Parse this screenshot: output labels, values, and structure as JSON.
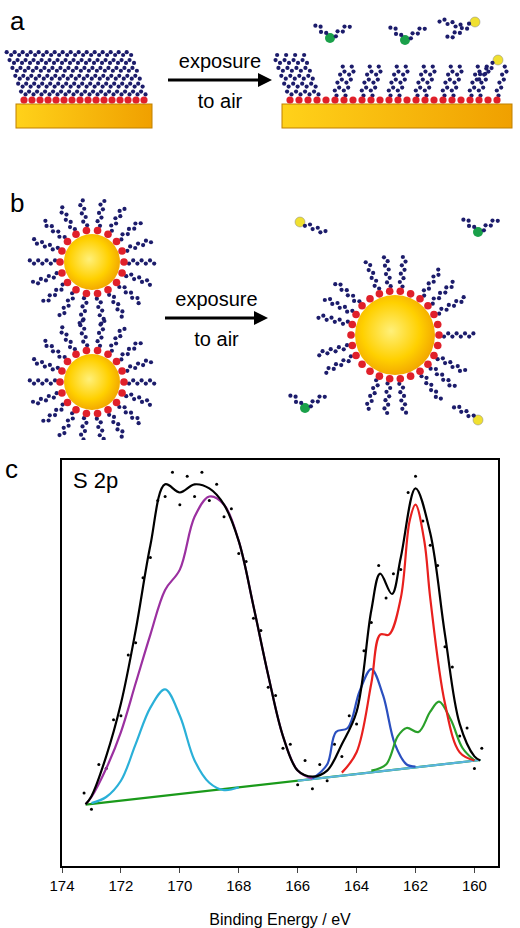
{
  "panels": [
    {
      "label": "a",
      "arrow_text": [
        "exposure",
        "to air"
      ]
    },
    {
      "label": "b",
      "arrow_text": [
        "exposure",
        "to air"
      ]
    }
  ],
  "chart_data": {
    "type": "line",
    "panel_label": "c",
    "title": "S 2p",
    "xlabel": "Binding Energy / eV",
    "xlim": [
      174,
      159.2
    ],
    "xticks": [
      174,
      172,
      170,
      168,
      166,
      164,
      162,
      160
    ],
    "ylim": [
      0,
      100
    ],
    "tick_labels": "x",
    "grid": false,
    "series": [
      {
        "type": "scatter",
        "marker": "circle",
        "color": "#000000",
        "x": [
          173.25,
          173.0,
          172.75,
          172.5,
          172.25,
          172.0,
          171.75,
          171.5,
          171.25,
          171.0,
          170.75,
          170.5,
          170.25,
          170.0,
          169.75,
          169.5,
          169.25,
          169.0,
          168.75,
          168.5,
          168.25,
          168.0,
          167.75,
          167.5,
          167.25,
          167.0,
          166.75,
          166.5,
          166.25,
          166.0,
          165.75,
          165.5,
          165.25,
          165.0,
          164.75,
          164.5,
          164.25,
          164.0,
          163.75,
          163.5,
          163.25,
          163.0,
          162.75,
          162.5,
          162.25,
          162.0,
          161.75,
          161.5,
          161.25,
          161.0,
          160.75,
          160.5,
          160.25,
          160.0,
          159.75
        ],
        "values": [
          18,
          14,
          25,
          24,
          36,
          37,
          52,
          55,
          71,
          76,
          90,
          91,
          97,
          89,
          96,
          91,
          97,
          90,
          94,
          86,
          88,
          77,
          75,
          61,
          58,
          44,
          42,
          29,
          30,
          20,
          26,
          19,
          25,
          21,
          30,
          27,
          37,
          35,
          53,
          60,
          74,
          66,
          72,
          73,
          92,
          96,
          85,
          79,
          74,
          54,
          49,
          32,
          34,
          24,
          29
        ]
      },
      {
        "type": "line",
        "line_style": "solid",
        "color": "#1a9a1a",
        "x": [
          173.2,
          159.8
        ],
        "values": [
          15.1,
          26.1
        ]
      },
      {
        "type": "line",
        "line_style": "solid",
        "color": "#5ab4e0",
        "x": [
          166,
          159.8
        ],
        "values": [
          21.0,
          26.1
        ]
      },
      {
        "type": "line",
        "line_style": "solid",
        "color": "#2ab0d8",
        "x": [
          173,
          172.5,
          172,
          171.5,
          171,
          170.5,
          170,
          169.5,
          169,
          168.5,
          168
        ],
        "values": [
          15.5,
          17,
          21,
          30,
          39,
          43.5,
          37,
          26,
          20.5,
          18.7,
          19.4
        ]
      },
      {
        "type": "line",
        "line_style": "solid",
        "color": "#9b30a0",
        "x": [
          173.2,
          173,
          172.5,
          172,
          171.5,
          171,
          170.5,
          170,
          169.5,
          169,
          168.5,
          168,
          167.5,
          167,
          166.5,
          166,
          165.5
        ],
        "values": [
          15.2,
          17,
          24,
          33,
          45,
          57,
          68,
          73,
          86,
          91,
          89,
          80,
          64,
          47,
          32,
          23.5,
          21.5
        ]
      },
      {
        "type": "line",
        "line_style": "solid",
        "color": "#2b4fbf",
        "x": [
          165.5,
          165,
          164.7,
          164.3,
          163.9,
          163.5,
          163.1,
          162.7,
          162.3,
          162
        ],
        "values": [
          21.5,
          25,
          33,
          34,
          43,
          48.5,
          42,
          30,
          25,
          24.5
        ]
      },
      {
        "type": "line",
        "line_style": "solid",
        "color": "#2aa02a",
        "x": [
          163.5,
          163,
          162.6,
          162.3,
          161.9,
          161.5,
          161.2,
          160.8,
          160.4,
          160
        ],
        "values": [
          23.5,
          25,
          32,
          34,
          33,
          38,
          40.5,
          36,
          29,
          26
        ]
      },
      {
        "type": "line",
        "line_style": "solid",
        "color": "#e8201e",
        "x": [
          164.5,
          164,
          163.5,
          163.2,
          162.9,
          162.5,
          162.2,
          162,
          161.7,
          161.5,
          161,
          160.5,
          160
        ],
        "values": [
          23,
          28,
          45,
          57,
          57,
          66,
          85,
          89,
          80,
          66,
          40,
          28,
          26
        ]
      },
      {
        "type": "line",
        "line_style": "solid",
        "color": "#000000",
        "x": [
          173.2,
          173,
          172.5,
          172,
          171.5,
          171,
          170.5,
          170,
          169.5,
          169,
          168.5,
          168,
          167.5,
          167,
          166.5,
          166,
          165.5,
          165,
          164.5,
          164,
          163.5,
          163.2,
          162.8,
          162.5,
          162,
          161.5,
          161,
          160.5,
          160,
          159.8
        ],
        "values": [
          15.2,
          17.2,
          27,
          40,
          58,
          79,
          94,
          92,
          94,
          93,
          89,
          80,
          64,
          47,
          32,
          23.5,
          22,
          23.5,
          30,
          38,
          63,
          72,
          67,
          76,
          93,
          82,
          57,
          35,
          27,
          26
        ]
      }
    ]
  }
}
